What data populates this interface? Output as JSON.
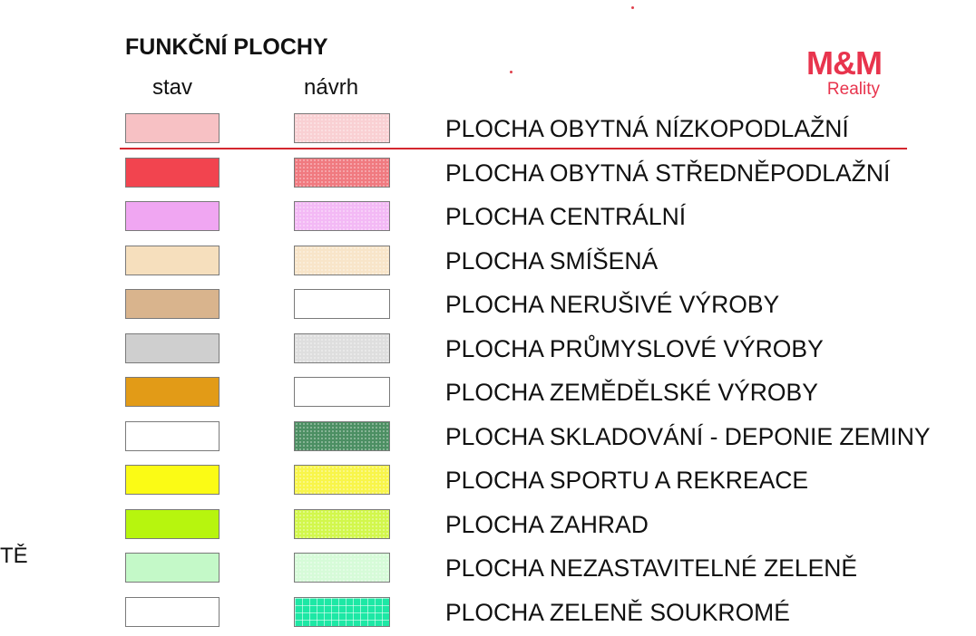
{
  "legend": {
    "title": "FUNKČNÍ PLOCHY",
    "col_stav": "stav",
    "col_navrh": "návrh",
    "rows": [
      {
        "label": "PLOCHA OBYTNÁ NÍZKOPODLAŽNÍ",
        "stav_color": "#f7c1c4",
        "navrh_color": "#f9d0d3",
        "navrh_pattern": "dots"
      },
      {
        "label": "PLOCHA OBYTNÁ STŘEDNĚPODLAŽNÍ",
        "stav_color": "#f2444f",
        "navrh_color": "#f07a80",
        "navrh_pattern": "dots"
      },
      {
        "label": "PLOCHA CENTRÁLNÍ",
        "stav_color": "#f0a6f2",
        "navrh_color": "#f3b9f5",
        "navrh_pattern": "dots"
      },
      {
        "label": "PLOCHA SMÍŠENÁ",
        "stav_color": "#f6dfbd",
        "navrh_color": "#f8e5c9",
        "navrh_pattern": "dots"
      },
      {
        "label": "PLOCHA NERUŠIVÉ VÝROBY",
        "stav_color": "#d9b48d",
        "navrh_color": "#ffffff",
        "navrh_pattern": "none"
      },
      {
        "label": "PLOCHA PRŮMYSLOVÉ VÝROBY",
        "stav_color": "#cfcfcf",
        "navrh_color": "#dedede",
        "navrh_pattern": "dots"
      },
      {
        "label": "PLOCHA ZEMĚDĚLSKÉ VÝROBY",
        "stav_color": "#e29b17",
        "navrh_color": "#ffffff",
        "navrh_pattern": "none"
      },
      {
        "label": "PLOCHA SKLADOVÁNÍ - DEPONIE ZEMINY",
        "stav_color": "#ffffff",
        "navrh_color": "#4c8f63",
        "navrh_pattern": "dots"
      },
      {
        "label": "PLOCHA SPORTU A REKREACE",
        "stav_color": "#fbfb15",
        "navrh_color": "#f8f54a",
        "navrh_pattern": "dots"
      },
      {
        "label": "PLOCHA ZAHRAD",
        "stav_color": "#b7f50e",
        "navrh_color": "#d2f74c",
        "navrh_pattern": "dots"
      },
      {
        "label": "PLOCHA NEZASTAVITELNÉ ZELENĚ",
        "stav_color": "#c4f9c8",
        "navrh_color": "#d6fbd8",
        "navrh_pattern": "dots"
      },
      {
        "label": "PLOCHA ZELENĚ SOUKROMÉ",
        "stav_color": "#ffffff",
        "navrh_color": "#1de8a5",
        "navrh_pattern": "grid"
      }
    ]
  },
  "logo": {
    "main": "M&M",
    "sub": "Reality",
    "color": "#e8344d"
  },
  "side_text": "TĚ",
  "accent_line_color": "#d4272f"
}
